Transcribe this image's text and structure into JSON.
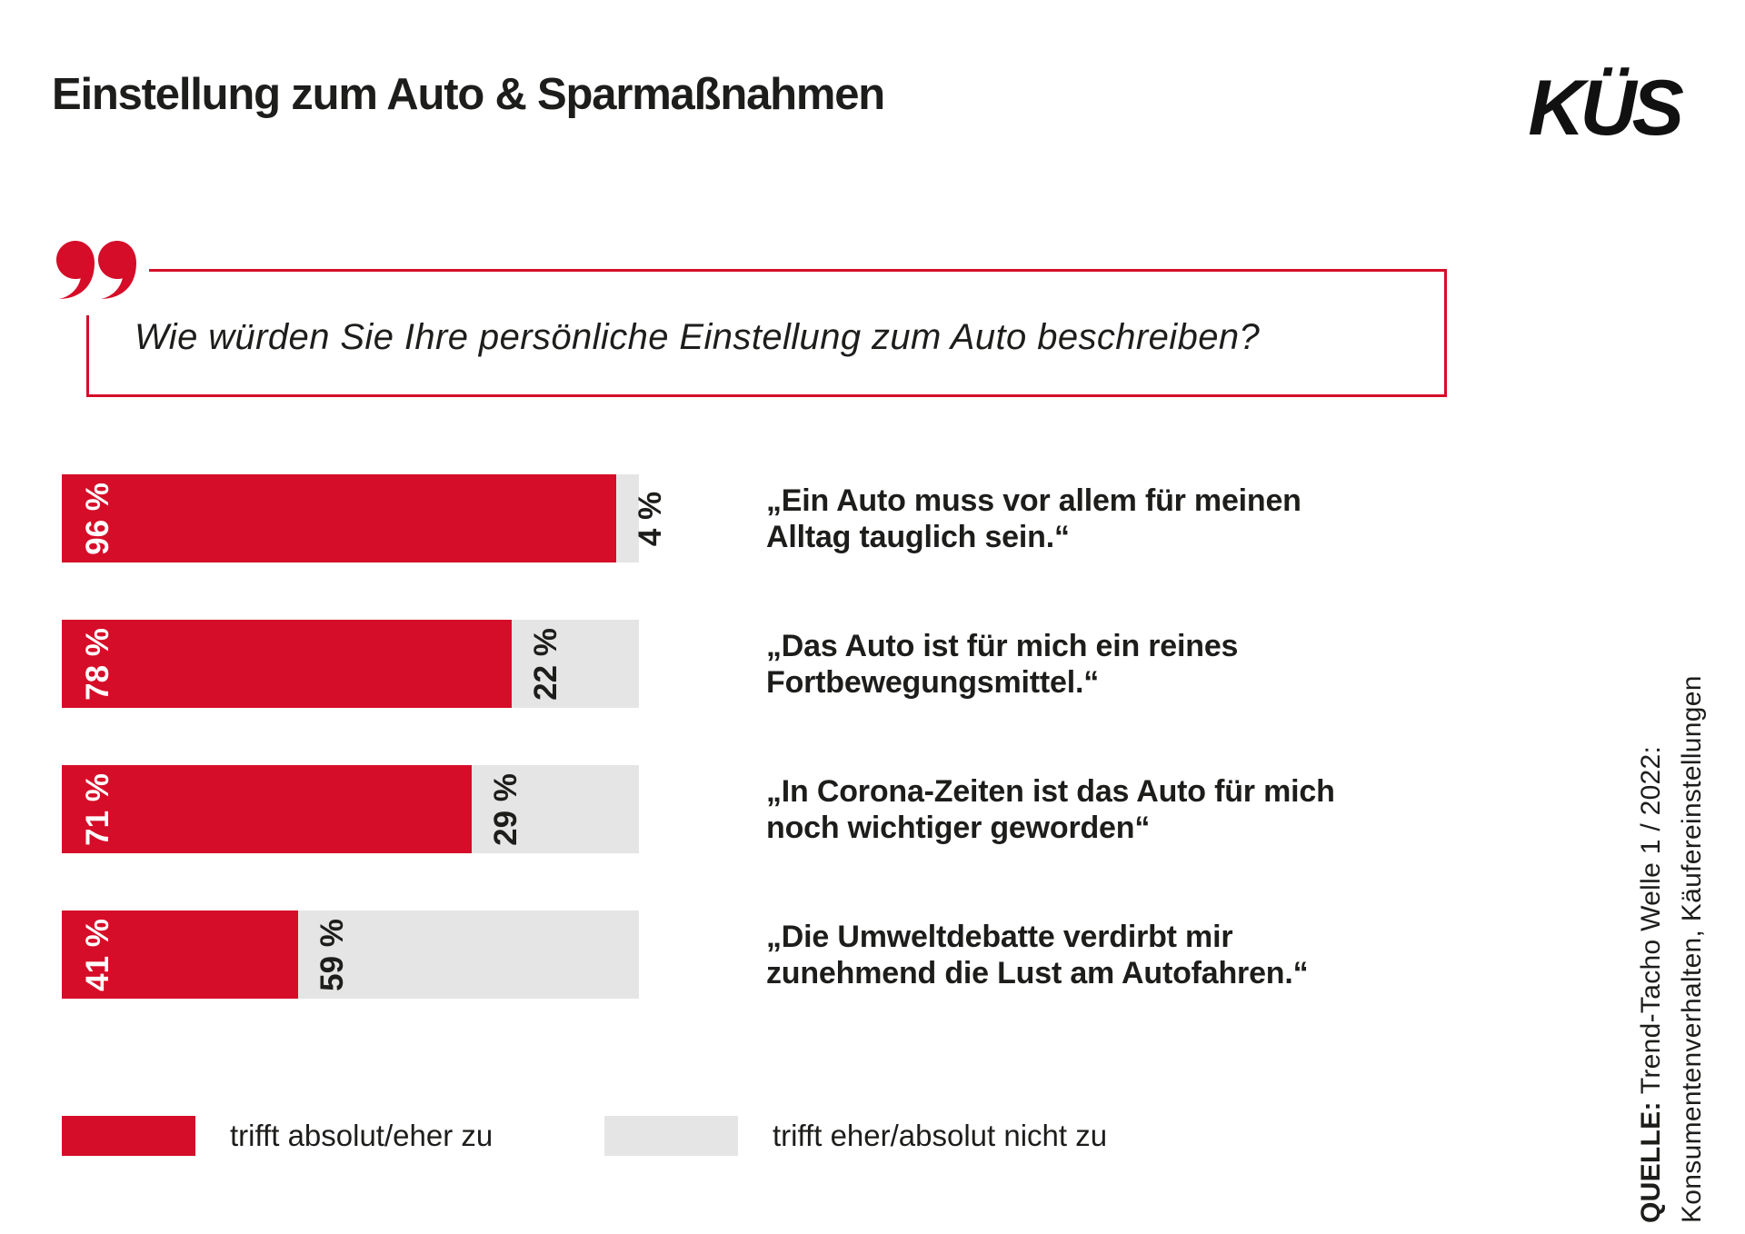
{
  "header": {
    "title": "Einstellung zum Auto & Sparmaßnahmen",
    "logo": "KÜS"
  },
  "question": {
    "text": "Wie würden Sie Ihre persönliche Einstellung zum Auto beschreiben?"
  },
  "chart_data": {
    "type": "bar",
    "orientation": "horizontal",
    "stacked": true,
    "unit": "%",
    "xlim": [
      0,
      100
    ],
    "categories": [
      "„Ein Auto muss vor allem für meinen Alltag tauglich sein.“",
      "„Das Auto ist für mich ein reines Fortbewegungsmittel.“",
      "„In Corona-Zeiten ist das Auto für mich noch wichtiger geworden“",
      "„Die Umweltdebatte verdirbt mir zunehmend die Lust am Autofahren.“"
    ],
    "series": [
      {
        "name": "trifft absolut/eher zu",
        "color": "#d60d28",
        "values": [
          96,
          78,
          71,
          41
        ]
      },
      {
        "name": "trifft eher/absolut nicht zu",
        "color": "#e5e5e5",
        "values": [
          4,
          22,
          29,
          59
        ]
      }
    ],
    "value_labels": {
      "agree": [
        "96 %",
        "78 %",
        "71 %",
        "41 %"
      ],
      "disagree": [
        "4 %",
        "22 %",
        "29 %",
        "59 %"
      ]
    },
    "legend_position": "bottom",
    "grid": false
  },
  "statements": [
    {
      "lines": [
        "„Ein Auto muss vor allem für meinen",
        "Alltag tauglich sein.“"
      ]
    },
    {
      "lines": [
        "„Das Auto ist für mich ein reines",
        "Fortbewegungsmittel.“"
      ]
    },
    {
      "lines": [
        "„In Corona-Zeiten ist das Auto für mich",
        "noch wichtiger geworden“"
      ]
    },
    {
      "lines": [
        "„Die Umweltdebatte verdirbt mir",
        "zunehmend die Lust am Autofahren.“"
      ]
    }
  ],
  "legend": {
    "agree_label": "trifft absolut/eher zu",
    "disagree_label": "trifft eher/absolut nicht zu"
  },
  "source": {
    "prefix": "QUELLE:",
    "line1_rest": " Trend-Tacho Welle 1 / 2022:",
    "line2": "Konsumentenverhalten, Käufereinstellungen"
  },
  "colors": {
    "agree_red": "#d60d28",
    "disagree_gray": "#e5e5e5",
    "text_black": "#1d1d1b"
  }
}
